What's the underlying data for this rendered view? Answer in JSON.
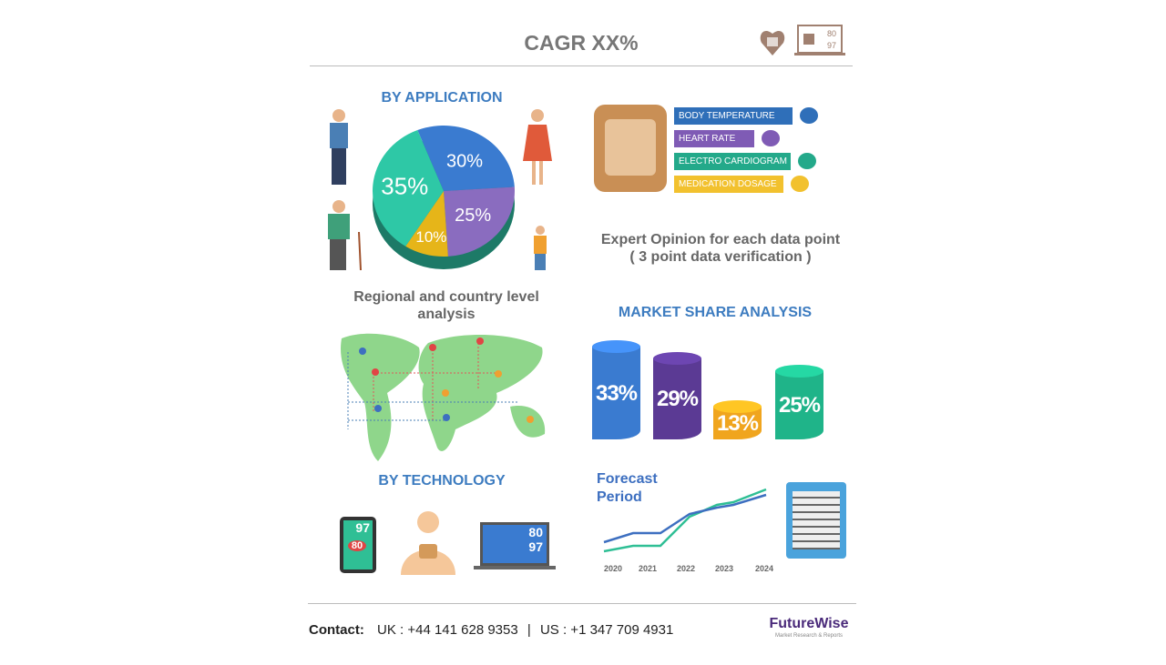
{
  "header": {
    "title": "CAGR XX%",
    "icons": [
      "wearable-heart-icon",
      "laptop-monitor-icon"
    ]
  },
  "application": {
    "title": "BY APPLICATION",
    "slices": [
      {
        "label": "30%",
        "value": 30,
        "color": "#3a7bd0"
      },
      {
        "label": "25%",
        "value": 25,
        "color": "#8a6cbf"
      },
      {
        "label": "10%",
        "value": 10,
        "color": "#e6b519"
      },
      {
        "label": "35%",
        "value": 35,
        "color": "#2ec8a6"
      }
    ]
  },
  "vitals": {
    "items": [
      {
        "label": "BODY TEMPERATURE",
        "color": "#2f6fb9",
        "icon": "thermometer-icon"
      },
      {
        "label": "HEART RATE",
        "color": "#7f5bb5",
        "icon": "heart-icon"
      },
      {
        "label": "ELECTRO CARDIOGRAM",
        "color": "#23a98a",
        "icon": "ecg-icon"
      },
      {
        "label": "MEDICATION DOSAGE",
        "color": "#f2c12e",
        "icon": "syringe-icon"
      }
    ]
  },
  "expert": {
    "line1": "Expert Opinion for each data point",
    "line2": "( 3 point data verification )"
  },
  "regional": {
    "line1": "Regional and country level",
    "line2": "analysis"
  },
  "market_share": {
    "title": "MARKET SHARE ANALYSIS",
    "cylinders": [
      {
        "label": "33%",
        "value": 33,
        "color": "#3a7bd0"
      },
      {
        "label": "29%",
        "value": 29,
        "color": "#5b3a94"
      },
      {
        "label": "13%",
        "value": 13,
        "color": "#f0a51e"
      },
      {
        "label": "25%",
        "value": 25,
        "color": "#1fb489"
      }
    ]
  },
  "technology": {
    "title": "BY TECHNOLOGY",
    "phone": {
      "top": "97",
      "bottom": "80"
    },
    "laptop": {
      "top": "80",
      "bottom": "97"
    }
  },
  "forecast": {
    "title_line1": "Forecast",
    "title_line2": "Period",
    "years": [
      "2020",
      "2021",
      "2022",
      "2023",
      "2024"
    ],
    "colors": {
      "blue": "#3d6fc0",
      "green": "#2fbf95"
    }
  },
  "footer": {
    "contact_label": "Contact:",
    "uk": "UK : +44 141 628 9353",
    "sep": "|",
    "us": "US : +1 347 709 4931",
    "brand": "FutureWise",
    "tagline": "Market Research & Reports"
  }
}
